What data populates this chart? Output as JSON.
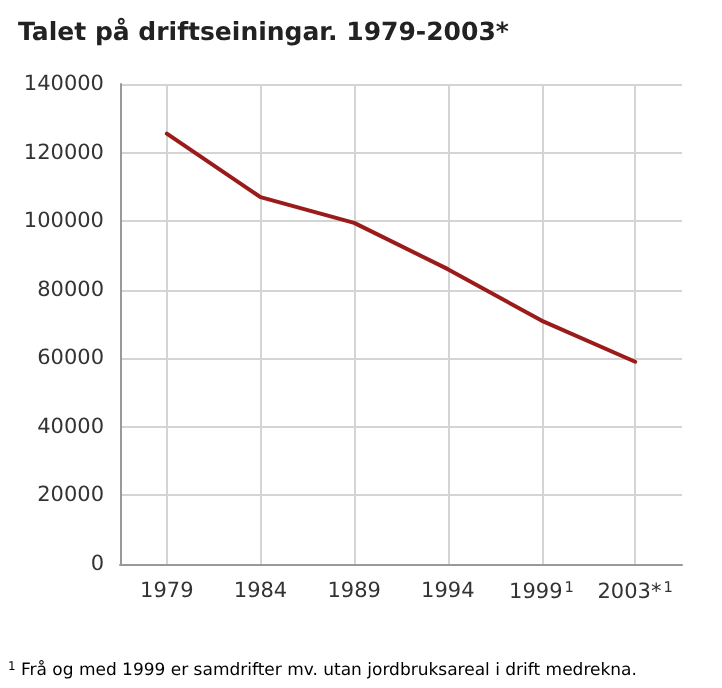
{
  "chart_data": {
    "type": "line",
    "title": "Talet på driftseiningar. 1979-2003*",
    "categories": [
      "1979",
      "1984",
      "1989",
      "1994",
      "1999$^{1}$",
      "2003*$^{1}$"
    ],
    "series": [
      {
        "color": "#9b1b1b",
        "values": [
          125500,
          107000,
          99500,
          86000,
          71000,
          59000
        ]
      }
    ],
    "ylim": [
      0,
      140000
    ],
    "yticks": [
      0,
      20000,
      40000,
      60000,
      80000,
      100000,
      120000,
      140000
    ],
    "grid": true,
    "marker": "none",
    "line_style": "solid",
    "annotations": [
      "$^{1}$ Frå og med 1999 er samdrifter mv. utan jordbruksareal i drift medrekna."
    ]
  }
}
